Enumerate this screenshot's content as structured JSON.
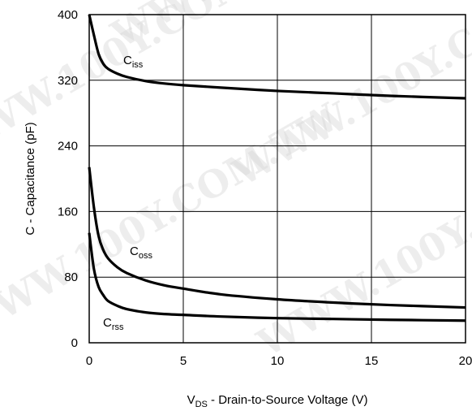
{
  "chart_data": {
    "type": "line",
    "xlabel": {
      "main": "V",
      "sub": "DS",
      "rest": " - Drain-to-Source Voltage (V)"
    },
    "ylabel": "C - Capacitance (pF)",
    "xlim": [
      0,
      20
    ],
    "ylim": [
      0,
      400
    ],
    "x_ticks": [
      0,
      5,
      10,
      15,
      20
    ],
    "y_ticks": [
      0,
      80,
      160,
      240,
      320,
      400
    ],
    "grid": true,
    "series": [
      {
        "name": {
          "main": "C",
          "sub": "iss"
        },
        "x": [
          0,
          0.25,
          0.5,
          0.75,
          1,
          1.5,
          2,
          3,
          4,
          5,
          7,
          10,
          13,
          16,
          20
        ],
        "y": [
          400,
          375,
          352,
          340,
          334,
          328,
          324,
          319,
          316,
          314,
          311,
          307,
          304,
          301,
          298
        ]
      },
      {
        "name": {
          "main": "C",
          "sub": "oss"
        },
        "x": [
          0,
          0.25,
          0.5,
          0.75,
          1,
          1.5,
          2,
          3,
          4,
          5,
          7,
          10,
          13,
          16,
          20
        ],
        "y": [
          214,
          165,
          130,
          113,
          103,
          92,
          85,
          76,
          70,
          66,
          59,
          53,
          49,
          46,
          43
        ]
      },
      {
        "name": {
          "main": "C",
          "sub": "rss"
        },
        "x": [
          0,
          0.25,
          0.5,
          0.75,
          1,
          1.5,
          2,
          3,
          4,
          5,
          7,
          10,
          13,
          16,
          20
        ],
        "y": [
          134,
          90,
          68,
          58,
          51,
          45,
          41,
          37,
          35,
          34,
          32,
          30,
          29,
          28,
          27
        ]
      }
    ]
  },
  "watermark": "WWW.100Y.COM.TW"
}
